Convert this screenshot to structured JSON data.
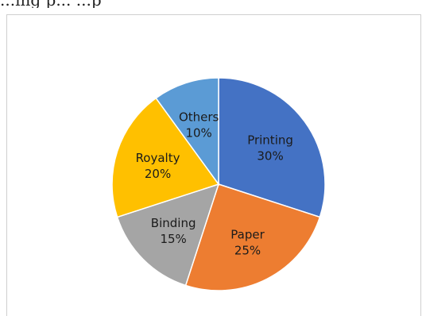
{
  "header_fragment": "...ing p... ...p",
  "chart_data": {
    "type": "pie",
    "categories": [
      "Printing",
      "Paper",
      "Binding",
      "Royalty",
      "Others"
    ],
    "values": [
      30,
      25,
      15,
      20,
      10
    ],
    "percent_labels": [
      "30%",
      "25%",
      "15%",
      "20%",
      "10%"
    ],
    "colors": [
      "#4472C4",
      "#ED7D31",
      "#A5A5A5",
      "#FFC000",
      "#5B9BD5"
    ],
    "start_angle_deg": 0,
    "direction": "clockwise",
    "legend": "none",
    "title": ""
  }
}
